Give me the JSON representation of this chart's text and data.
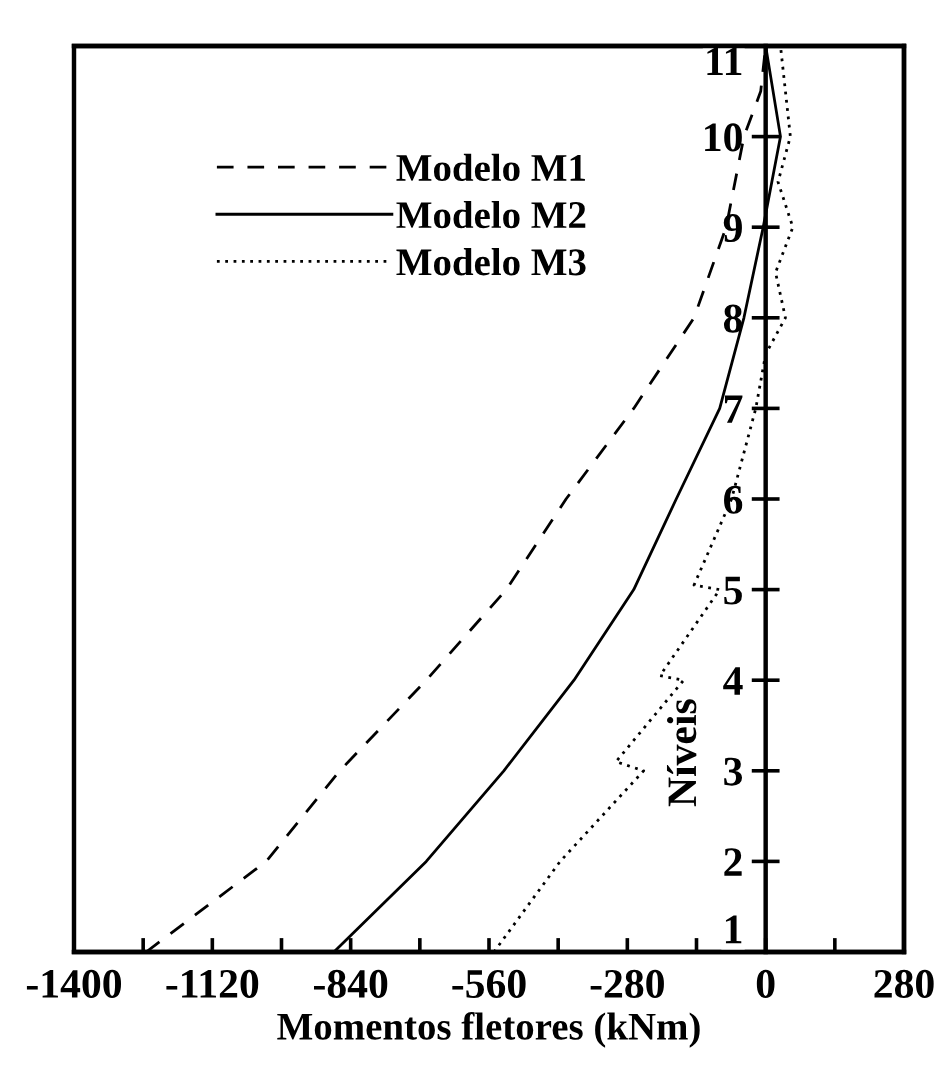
{
  "chart_data": {
    "type": "line",
    "xlabel": "Momentos fletores (kNm)",
    "ylabel": "Níveis",
    "xlim": [
      -1400,
      280
    ],
    "ylim": [
      1,
      11
    ],
    "xticks": [
      -1400,
      {
        "value": -1260,
        "label": null
      },
      -1120,
      {
        "value": -980,
        "label": null
      },
      -840,
      {
        "value": -700,
        "label": null
      },
      -560,
      {
        "value": -420,
        "label": null
      },
      -280,
      {
        "value": -140,
        "label": null
      },
      0,
      {
        "value": 140,
        "label": null
      },
      280
    ],
    "yticks": [
      1,
      2,
      3,
      4,
      5,
      6,
      7,
      8,
      9,
      10,
      11
    ],
    "grid": false,
    "legend": "top left",
    "series": [
      {
        "name": "Modelo M1",
        "color": "#000000",
        "line_style": "dashed",
        "x": [
          -1254,
          -1011,
          -862,
          -687,
          -525,
          -404,
          -267,
          -145,
          -80,
          -44,
          -10,
          0
        ],
        "values": [
          1,
          2,
          3,
          4,
          5,
          6,
          7,
          8,
          9,
          10,
          10.5,
          11
        ]
      },
      {
        "name": "Modelo M2",
        "color": "#000000",
        "line_style": "solid",
        "x": [
          -874,
          -687,
          -530,
          -388,
          -267,
          -181,
          -93,
          -44,
          -5,
          30,
          0
        ],
        "values": [
          1,
          2,
          3,
          4,
          5,
          6,
          7,
          8,
          9,
          10,
          11
        ]
      },
      {
        "name": "Modelo M3",
        "color": "#000000",
        "line_style": "dotted",
        "x": [
          -550,
          -416,
          -247,
          -303,
          -166,
          -214,
          -93,
          -145,
          -69,
          -20,
          0,
          40,
          20,
          55,
          25,
          50,
          30
        ],
        "values": [
          1,
          2,
          3,
          3.1,
          4,
          4.05,
          5,
          5.05,
          6,
          7,
          7.6,
          8,
          8.5,
          9,
          9.5,
          10,
          11
        ]
      }
    ]
  }
}
